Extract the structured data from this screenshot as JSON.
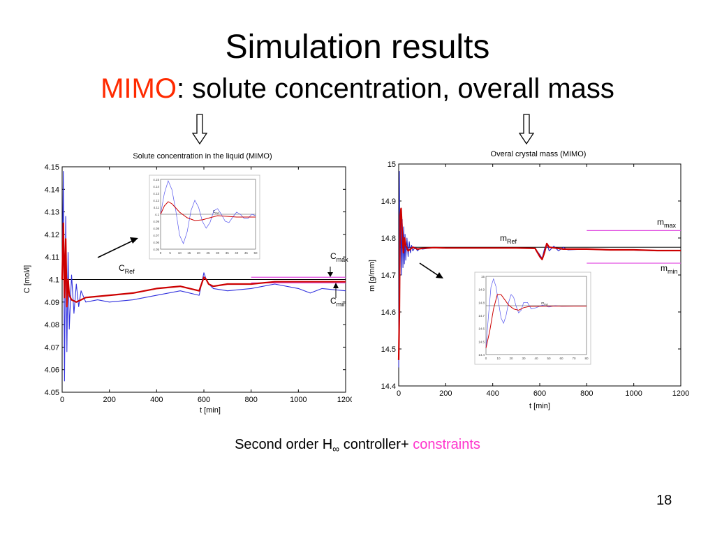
{
  "slide": {
    "title": "Simulation results",
    "subtitle_highlight": "MIMO",
    "subtitle_rest": ": solute concentration, overall mass",
    "caption_main": "Second order H",
    "caption_sub": "∞",
    "caption_rest": " controller+ ",
    "caption_highlight": "constraints",
    "page_number": "18",
    "colors": {
      "highlight_red": "#ff2a00",
      "constraints_pink": "#ff33cc"
    }
  },
  "chart_data": [
    {
      "type": "line",
      "title": "Solute concentration in the liquid (MIMO)",
      "xlabel": "t [min]",
      "ylabel": "C [mol/l]",
      "xlim": [
        0,
        1200
      ],
      "ylim": [
        4.05,
        4.15
      ],
      "xticks": [
        "0",
        "200",
        "400",
        "600",
        "800",
        "1000",
        "1200"
      ],
      "yticks": [
        "4.05",
        "4.06",
        "4.07",
        "4.08",
        "4.09",
        "4.1",
        "4.11",
        "4.12",
        "4.13",
        "4.14",
        "4.15"
      ],
      "reference": {
        "value": 4.1,
        "label": "C",
        "sub": "Ref"
      },
      "constraints": [
        {
          "name": "max",
          "label": "C",
          "sub": "max",
          "value": 4.101,
          "from": 800,
          "to": 1200
        },
        {
          "name": "min",
          "label": "C",
          "sub": "min",
          "value": 4.0985,
          "from": 800,
          "to": 1200
        }
      ],
      "series": [
        {
          "color": "#cc0000",
          "x": [
            0,
            5,
            10,
            15,
            20,
            25,
            30,
            40,
            60,
            80,
            100,
            200,
            300,
            400,
            500,
            580,
            600,
            610,
            620,
            640,
            700,
            800,
            900,
            1000,
            1100,
            1200
          ],
          "y": [
            4.1,
            4.125,
            4.092,
            4.118,
            4.088,
            4.1,
            4.093,
            4.091,
            4.09,
            4.091,
            4.092,
            4.093,
            4.094,
            4.096,
            4.097,
            4.095,
            4.101,
            4.1,
            4.098,
            4.097,
            4.098,
            4.098,
            4.099,
            4.099,
            4.099,
            4.099
          ]
        },
        {
          "color": "#3030dd",
          "x": [
            0,
            5,
            10,
            15,
            20,
            25,
            30,
            40,
            50,
            60,
            70,
            80,
            100,
            150,
            200,
            300,
            400,
            500,
            580,
            600,
            610,
            620,
            640,
            700,
            800,
            900,
            1000,
            1050,
            1100,
            1200
          ],
          "y": [
            4.1,
            4.148,
            4.055,
            4.128,
            4.068,
            4.112,
            4.078,
            4.102,
            4.085,
            4.098,
            4.088,
            4.095,
            4.09,
            4.091,
            4.09,
            4.091,
            4.093,
            4.095,
            4.093,
            4.103,
            4.1,
            4.098,
            4.096,
            4.095,
            4.096,
            4.098,
            4.096,
            4.094,
            4.096,
            4.095
          ]
        }
      ],
      "inset": {
        "reference": 4.1,
        "reference_label": "C",
        "reference_sub": "Ref",
        "xlim": [
          0,
          50
        ],
        "ylim": [
          4.05,
          4.15
        ],
        "xticks": [
          "0",
          "5",
          "10",
          "15",
          "20",
          "25",
          "30",
          "35",
          "40",
          "45",
          "50"
        ],
        "yticks": [
          "4.15",
          "4.14",
          "4.13",
          "4.12",
          "4.11",
          "4.1",
          "4.09",
          "4.08",
          "4.07",
          "4.06",
          "4.05"
        ],
        "series": [
          {
            "color": "#cc0000",
            "x": [
              0,
              2,
              4,
              6,
              8,
              10,
              14,
              18,
              22,
              26,
              30,
              35,
              40,
              45,
              50
            ],
            "y": [
              4.1,
              4.112,
              4.118,
              4.115,
              4.109,
              4.103,
              4.095,
              4.091,
              4.092,
              4.095,
              4.098,
              4.097,
              4.096,
              4.096,
              4.096
            ]
          },
          {
            "color": "#5555ee",
            "x": [
              0,
              2,
              4,
              6,
              8,
              10,
              12,
              14,
              16,
              18,
              20,
              22,
              24,
              26,
              28,
              30,
              32,
              34,
              36,
              38,
              40,
              42,
              44,
              46,
              48,
              50
            ],
            "y": [
              4.1,
              4.13,
              4.148,
              4.135,
              4.105,
              4.07,
              4.058,
              4.075,
              4.105,
              4.12,
              4.11,
              4.09,
              4.08,
              4.088,
              4.105,
              4.108,
              4.1,
              4.09,
              4.088,
              4.096,
              4.103,
              4.1,
              4.094,
              4.094,
              4.1,
              4.098
            ]
          }
        ]
      }
    },
    {
      "type": "line",
      "title": "Overal crystal mass (MIMO)",
      "xlabel": "t [min]",
      "ylabel": "m [g/mm]",
      "xlim": [
        0,
        1200
      ],
      "ylim": [
        14.4,
        15
      ],
      "xticks": [
        "0",
        "200",
        "400",
        "600",
        "800",
        "1000",
        "1200"
      ],
      "yticks": [
        "14.4",
        "14.5",
        "14.6",
        "14.7",
        "14.8",
        "14.9",
        "15"
      ],
      "reference": {
        "value": 14.775,
        "label": "m",
        "sub": "Ref"
      },
      "constraints": [
        {
          "name": "max",
          "label": "m",
          "sub": "max",
          "value": 14.82,
          "from": 800,
          "to": 1200
        },
        {
          "name": "min",
          "label": "m",
          "sub": "min",
          "value": 14.732,
          "from": 800,
          "to": 1200
        }
      ],
      "series": [
        {
          "color": "#cc0000",
          "x": [
            0,
            3,
            6,
            10,
            15,
            20,
            25,
            30,
            40,
            50,
            60,
            80,
            100,
            150,
            200,
            300,
            400,
            500,
            580,
            600,
            610,
            620,
            630,
            640,
            700,
            800,
            900,
            1000,
            1100,
            1200
          ],
          "y": [
            14.47,
            14.6,
            14.86,
            14.88,
            14.82,
            14.76,
            14.8,
            14.78,
            14.765,
            14.77,
            14.775,
            14.77,
            14.772,
            14.774,
            14.773,
            14.773,
            14.773,
            14.773,
            14.772,
            14.75,
            14.742,
            14.76,
            14.785,
            14.775,
            14.77,
            14.77,
            14.768,
            14.768,
            14.766,
            14.766
          ]
        },
        {
          "color": "#2a2acc",
          "x": [
            0,
            3,
            6,
            9,
            12,
            15,
            18,
            21,
            24,
            27,
            30,
            35,
            40,
            45,
            50,
            55,
            60,
            70,
            80,
            90,
            100,
            150,
            200,
            300,
            400,
            500,
            580,
            600,
            610,
            620,
            630,
            640,
            660,
            680,
            700,
            720,
            800,
            900,
            1000,
            1100,
            1200
          ],
          "y": [
            14.45,
            14.98,
            14.72,
            14.88,
            14.7,
            14.85,
            14.72,
            14.83,
            14.73,
            14.81,
            14.74,
            14.8,
            14.75,
            14.79,
            14.76,
            14.78,
            14.765,
            14.775,
            14.765,
            14.772,
            14.77,
            14.774,
            14.773,
            14.773,
            14.773,
            14.773,
            14.772,
            14.755,
            14.745,
            14.77,
            14.785,
            14.765,
            14.778,
            14.765,
            14.775,
            14.768,
            14.77,
            14.767,
            14.767,
            14.765,
            14.765
          ]
        }
      ],
      "inset": {
        "reference": 14.775,
        "reference_label": "m",
        "reference_sub": "Ref",
        "xlim": [
          0,
          80
        ],
        "ylim": [
          14.4,
          15
        ],
        "xticks": [
          "0",
          "10",
          "20",
          "30",
          "40",
          "50",
          "60",
          "70",
          "80"
        ],
        "yticks": [
          "15",
          "14.9",
          "14.8",
          "14.7",
          "14.6",
          "14.5",
          "14.4"
        ],
        "series": [
          {
            "color": "#cc0000",
            "x": [
              0,
              3,
              6,
              9,
              12,
              15,
              18,
              22,
              26,
              30,
              35,
              40,
              50,
              60,
              70,
              80
            ],
            "y": [
              14.45,
              14.58,
              14.75,
              14.86,
              14.86,
              14.82,
              14.78,
              14.75,
              14.74,
              14.76,
              14.77,
              14.77,
              14.772,
              14.772,
              14.772,
              14.772
            ]
          },
          {
            "color": "#5555ee",
            "x": [
              0,
              2,
              4,
              6,
              8,
              10,
              12,
              14,
              16,
              18,
              20,
              22,
              24,
              26,
              28,
              30,
              33,
              36,
              40,
              45,
              50,
              55,
              60,
              70,
              80
            ],
            "y": [
              14.45,
              14.7,
              14.92,
              14.98,
              14.92,
              14.8,
              14.68,
              14.64,
              14.7,
              14.8,
              14.86,
              14.84,
              14.77,
              14.72,
              14.74,
              14.8,
              14.8,
              14.75,
              14.76,
              14.78,
              14.765,
              14.775,
              14.77,
              14.772,
              14.772
            ]
          }
        ]
      }
    }
  ]
}
